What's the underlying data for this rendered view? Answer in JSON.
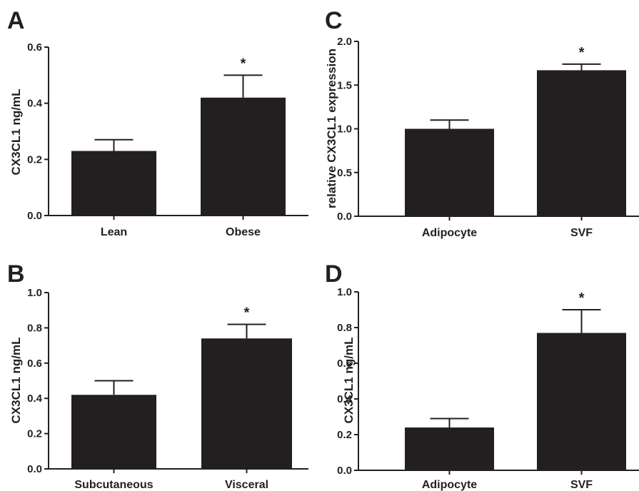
{
  "chart_data": [
    {
      "panel": "A",
      "type": "bar",
      "ylabel": "CX3CL1 ng/mL",
      "categories": [
        "Lean",
        "Obese"
      ],
      "values": [
        0.23,
        0.42
      ],
      "errors": [
        0.04,
        0.08
      ],
      "significance": [
        "",
        "*"
      ],
      "ylim": [
        0,
        0.6
      ],
      "yticks": [
        "0.0",
        "0.2",
        "0.4",
        "0.6"
      ],
      "bar_color": "#231f20"
    },
    {
      "panel": "B",
      "type": "bar",
      "ylabel": "CX3CL1 ng/mL",
      "categories": [
        "Subcutaneous",
        "Visceral"
      ],
      "values": [
        0.42,
        0.74
      ],
      "errors": [
        0.08,
        0.08
      ],
      "significance": [
        "",
        "*"
      ],
      "ylim": [
        0,
        1.0
      ],
      "yticks": [
        "0.0",
        "0.2",
        "0.4",
        "0.6",
        "0.8",
        "1.0"
      ],
      "bar_color": "#231f20"
    },
    {
      "panel": "C",
      "type": "bar",
      "ylabel": "relative CX3CL1 expression",
      "categories": [
        "Adipocyte",
        "SVF"
      ],
      "values": [
        1.0,
        1.67
      ],
      "errors": [
        0.1,
        0.07
      ],
      "significance": [
        "",
        "*"
      ],
      "ylim": [
        0,
        2.0
      ],
      "yticks": [
        "0.0",
        "0.5",
        "1.0",
        "1.5",
        "2.0"
      ],
      "bar_color": "#231f20"
    },
    {
      "panel": "D",
      "type": "bar",
      "ylabel": "CX3CL1 ng/mL",
      "categories": [
        "Adipocyte",
        "SVF"
      ],
      "values": [
        0.24,
        0.77
      ],
      "errors": [
        0.05,
        0.13
      ],
      "significance": [
        "",
        "*"
      ],
      "ylim": [
        0,
        1.0
      ],
      "yticks": [
        "0.0",
        "0.2",
        "0.4",
        "0.6",
        "0.8",
        "1.0"
      ],
      "bar_color": "#231f20"
    }
  ]
}
